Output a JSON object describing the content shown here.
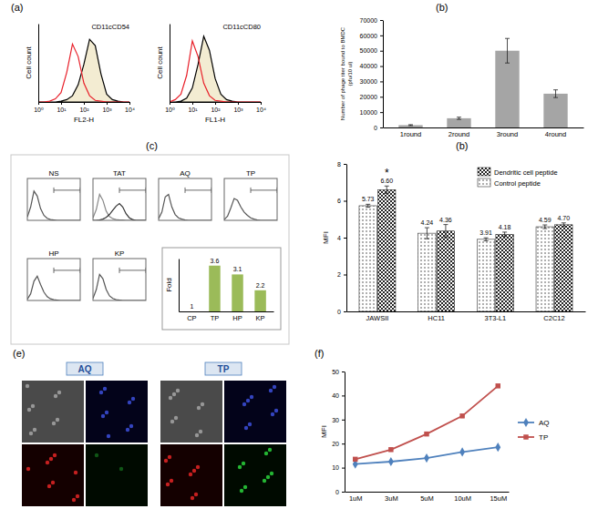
{
  "panel_labels": [
    "(a)",
    "(b)",
    "(c)",
    "(b)",
    "(e)",
    "(f)"
  ],
  "images": {
    "titles": [
      "AQ",
      "TP"
    ]
  },
  "chart_data": [
    {
      "type": "density",
      "title": "CD11cCD54",
      "x_label": "FL2-H",
      "y_label": "Cell count",
      "log": "x",
      "x": [
        1,
        1.78,
        3.16,
        5.62,
        10,
        17.8,
        31.6,
        56.2,
        100,
        178,
        316,
        562,
        1000,
        1778,
        3162,
        5623,
        10000
      ],
      "xlim": [
        1,
        10000
      ],
      "xticks": [
        {
          "value": 1,
          "label": "10⁰"
        },
        {
          "value": 10,
          "label": "10¹"
        },
        {
          "value": 100,
          "label": "10²"
        },
        {
          "value": 1000,
          "label": "10³"
        },
        {
          "value": 10000,
          "label": "10⁴"
        }
      ],
      "ylim": [
        0,
        100
      ],
      "tick_labels": "x",
      "series": [
        {
          "type": "area",
          "color": "#000000",
          "values": [
            0,
            0,
            0,
            0,
            1,
            3,
            8,
            22,
            48,
            80,
            72,
            36,
            10,
            3,
            1,
            0,
            0
          ]
        },
        {
          "type": "line",
          "color": "#e8202a",
          "values": [
            0,
            0,
            1,
            4,
            12,
            38,
            74,
            58,
            24,
            8,
            2,
            1,
            0,
            0,
            0,
            0,
            0
          ]
        }
      ]
    },
    {
      "type": "density",
      "title": "CD11cCD80",
      "x_label": "FL1-H",
      "y_label": "Cell count",
      "log": "x",
      "x": [
        1,
        1.78,
        3.16,
        5.62,
        10,
        17.8,
        31.6,
        56.2,
        100,
        178,
        316,
        562,
        1000,
        1778,
        3162,
        5623,
        10000
      ],
      "xlim": [
        1,
        10000
      ],
      "xticks": [
        {
          "value": 1,
          "label": "10⁰"
        },
        {
          "value": 10,
          "label": "10¹"
        },
        {
          "value": 100,
          "label": "10²"
        },
        {
          "value": 1000,
          "label": "10³"
        },
        {
          "value": 10000,
          "label": "10⁴"
        }
      ],
      "ylim": [
        0,
        100
      ],
      "tick_labels": "x",
      "series": [
        {
          "type": "area",
          "color": "#000000",
          "values": [
            0,
            0,
            1,
            5,
            18,
            48,
            84,
            66,
            30,
            10,
            3,
            1,
            0,
            0,
            0,
            0,
            0
          ]
        },
        {
          "type": "line",
          "color": "#e8202a",
          "values": [
            0,
            3,
            10,
            34,
            78,
            58,
            24,
            8,
            2,
            1,
            0,
            0,
            0,
            0,
            0,
            0,
            0
          ]
        }
      ]
    },
    {
      "type": "bar",
      "y_label": [
        "Number of phage titer bound to BMDC",
        "(pfu/10 ul)"
      ],
      "categories": [
        "1round",
        "2round",
        "3round",
        "4round"
      ],
      "values": [
        1500,
        6000,
        50000,
        22000
      ],
      "errors": [
        300,
        700,
        8000,
        2500
      ],
      "color": "#a5a5a5",
      "ylim": [
        0,
        70000
      ],
      "yticks": [
        0,
        10000,
        20000,
        30000,
        40000,
        50000,
        60000,
        70000
      ]
    },
    {
      "type": "density",
      "title": "NS",
      "log": "x",
      "x": [
        1,
        1.78,
        3.16,
        5.62,
        10,
        17.8,
        31.6,
        56.2,
        100,
        178,
        316,
        562,
        1000,
        1778,
        3162,
        5623,
        10000
      ],
      "xlim": [
        1,
        10000
      ],
      "ylim": [
        0,
        100
      ],
      "tick_labels": false,
      "gate": [
        100,
        10000
      ],
      "series": [
        {
          "type": "line",
          "color": "#555555",
          "values": [
            8,
            32,
            70,
            58,
            28,
            12,
            5,
            2,
            1,
            0,
            0,
            0,
            0,
            0,
            0,
            0,
            0
          ]
        }
      ]
    },
    {
      "type": "density",
      "title": "TAT",
      "log": "x",
      "x": [
        1,
        1.78,
        3.16,
        5.62,
        10,
        17.8,
        31.6,
        56.2,
        100,
        178,
        316,
        562,
        1000,
        1778,
        3162,
        5623,
        10000
      ],
      "xlim": [
        1,
        10000
      ],
      "ylim": [
        0,
        100
      ],
      "tick_labels": false,
      "gate": [
        100,
        10000
      ],
      "series": [
        {
          "type": "line",
          "color": "#888888",
          "values": [
            6,
            26,
            62,
            48,
            22,
            9,
            4,
            2,
            1,
            1,
            0,
            0,
            0,
            0,
            0,
            0,
            0
          ]
        },
        {
          "type": "line",
          "color": "#333333",
          "values": [
            0,
            0,
            1,
            3,
            7,
            14,
            24,
            34,
            40,
            32,
            16,
            6,
            2,
            0,
            0,
            0,
            0
          ]
        }
      ]
    },
    {
      "type": "density",
      "title": "AQ",
      "log": "x",
      "x": [
        1,
        1.78,
        3.16,
        5.62,
        10,
        17.8,
        31.6,
        56.2,
        100,
        178,
        316,
        562,
        1000,
        1778,
        3162,
        5623,
        10000
      ],
      "xlim": [
        1,
        10000
      ],
      "ylim": [
        0,
        100
      ],
      "tick_labels": false,
      "gate": [
        100,
        10000
      ],
      "series": [
        {
          "type": "line",
          "color": "#555555",
          "values": [
            4,
            20,
            56,
            62,
            32,
            14,
            6,
            3,
            1,
            0,
            0,
            0,
            0,
            0,
            0,
            0,
            0
          ]
        }
      ]
    },
    {
      "type": "density",
      "title": "TP",
      "log": "x",
      "x": [
        1,
        1.78,
        3.16,
        5.62,
        10,
        17.8,
        31.6,
        56.2,
        100,
        178,
        316,
        562,
        1000,
        1778,
        3162,
        5623,
        10000
      ],
      "xlim": [
        1,
        10000
      ],
      "ylim": [
        0,
        100
      ],
      "tick_labels": false,
      "gate": [
        100,
        10000
      ],
      "series": [
        {
          "type": "line",
          "color": "#555555",
          "values": [
            2,
            10,
            30,
            52,
            48,
            32,
            20,
            12,
            6,
            3,
            1,
            0,
            0,
            0,
            0,
            0,
            0
          ]
        }
      ]
    },
    {
      "type": "density",
      "title": "HP",
      "log": "x",
      "x": [
        1,
        1.78,
        3.16,
        5.62,
        10,
        17.8,
        31.6,
        56.2,
        100,
        178,
        316,
        562,
        1000,
        1778,
        3162,
        5623,
        10000
      ],
      "xlim": [
        1,
        10000
      ],
      "ylim": [
        0,
        100
      ],
      "tick_labels": false,
      "gate": [
        100,
        10000
      ],
      "series": [
        {
          "type": "line",
          "color": "#555555",
          "values": [
            3,
            16,
            46,
            58,
            38,
            20,
            9,
            4,
            2,
            1,
            0,
            0,
            0,
            0,
            0,
            0,
            0
          ]
        }
      ]
    },
    {
      "type": "density",
      "title": "KP",
      "log": "x",
      "x": [
        1,
        1.78,
        3.16,
        5.62,
        10,
        17.8,
        31.6,
        56.2,
        100,
        178,
        316,
        562,
        1000,
        1778,
        3162,
        5623,
        10000
      ],
      "xlim": [
        1,
        10000
      ],
      "ylim": [
        0,
        100
      ],
      "tick_labels": false,
      "gate": [
        100,
        10000
      ],
      "series": [
        {
          "type": "line",
          "color": "#555555",
          "values": [
            5,
            26,
            62,
            52,
            26,
            11,
            5,
            2,
            1,
            0,
            0,
            0,
            0,
            0,
            0,
            0,
            0
          ]
        }
      ]
    },
    {
      "type": "bar",
      "y_label": "Fold",
      "categories": [
        "CP",
        "TP",
        "HP",
        "KP"
      ],
      "values": [
        1,
        3.6,
        3.1,
        2.2
      ],
      "color": "#9bbb59",
      "data_labels": true,
      "ylim": [
        1,
        4
      ],
      "tick_labels": "x"
    },
    {
      "type": "bar",
      "y_label": "MFI",
      "categories": [
        "JAWSII",
        "HC11",
        "3T3-L1",
        "C2C12"
      ],
      "series": [
        {
          "name": "Control peptide",
          "color": "#8a8a8a",
          "values": [
            5.73,
            4.24,
            3.91,
            4.59
          ],
          "value_labels": [
            "5.73",
            "4.24",
            "3.91",
            "4.59"
          ],
          "errors": [
            0.08,
            0.3,
            0.08,
            0.1
          ]
        },
        {
          "name": "Dendritic cell peptide",
          "color": "#222222",
          "values": [
            6.6,
            4.36,
            4.18,
            4.7
          ],
          "value_labels": [
            "6.60",
            "4.36",
            "4.18",
            "4.70"
          ],
          "errors": [
            0.2,
            0.35,
            0.12,
            0.1
          ]
        }
      ],
      "annotations": [
        {
          "text": "*",
          "category": "JAWSII",
          "series": "Dendritic cell peptide"
        }
      ],
      "data_labels": true,
      "legend": "top-right",
      "ylim": [
        0,
        8
      ],
      "yticks": [
        0,
        2,
        4,
        6,
        8
      ]
    },
    {
      "type": "line",
      "y_label": "MFI",
      "categories": [
        "1uM",
        "3uM",
        "5uM",
        "10uM",
        "15uM"
      ],
      "series": [
        {
          "name": "AQ",
          "color": "#4f81bd",
          "marker": "diamond",
          "values": [
            11.5,
            12.5,
            14,
            16.5,
            18.5
          ]
        },
        {
          "name": "TP",
          "color": "#c0504d",
          "marker": "square",
          "values": [
            13.5,
            17.5,
            24,
            31.5,
            44
          ]
        }
      ],
      "legend": "right",
      "ylim": [
        0,
        50
      ],
      "yticks": [
        0,
        10,
        20,
        30,
        40,
        50
      ]
    }
  ]
}
